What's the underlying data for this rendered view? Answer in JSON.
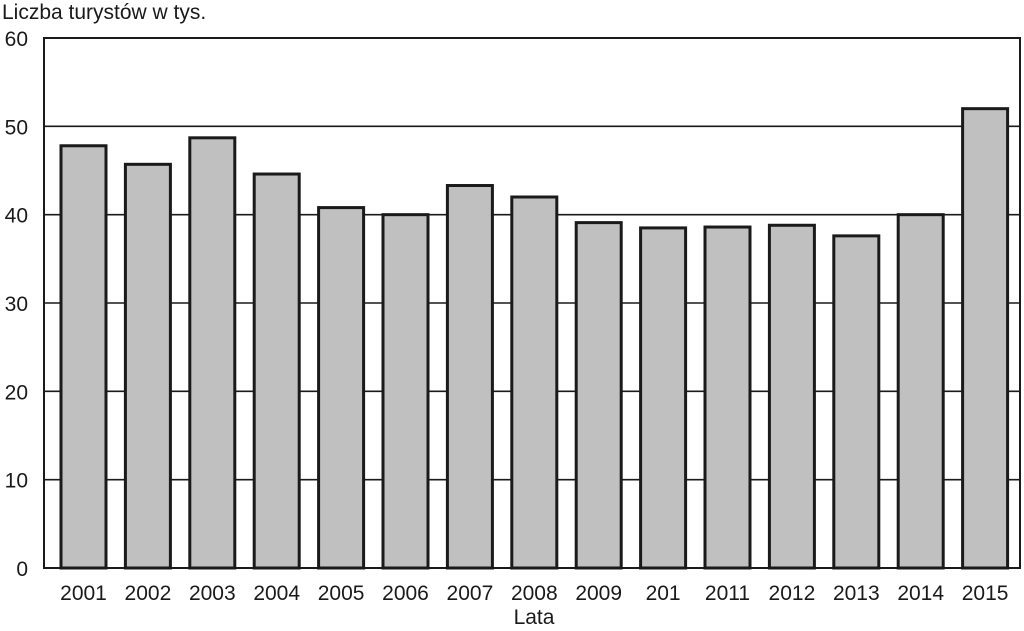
{
  "chart_data": {
    "type": "bar",
    "ylabel": "Liczba turystów w tys.",
    "xlabel": "Lata",
    "categories": [
      "2001",
      "2002",
      "2003",
      "2004",
      "2005",
      "2006",
      "2007",
      "2008",
      "2009",
      "201",
      "2011",
      "2012",
      "2013",
      "2014",
      "2015"
    ],
    "values": [
      47.8,
      45.7,
      48.7,
      44.6,
      40.8,
      40.0,
      43.3,
      42.0,
      39.1,
      38.5,
      38.6,
      38.8,
      37.6,
      40.0,
      52.0
    ],
    "ylim": [
      0,
      60
    ],
    "yticks": [
      "0",
      "10",
      "20",
      "30",
      "40",
      "50",
      "60"
    ],
    "grid": true,
    "colors": {
      "bar_fill": "#c0c0c0",
      "bar_stroke": "#1a1a1a",
      "axis": "#1a1a1a",
      "grid": "#1a1a1a"
    }
  }
}
